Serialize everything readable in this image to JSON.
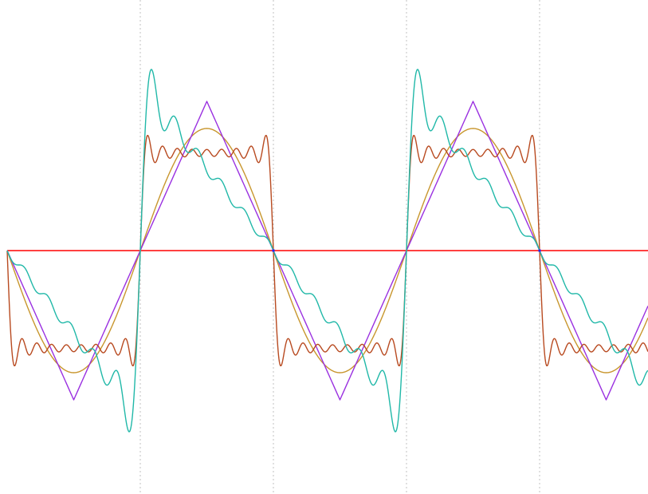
{
  "chart_data": {
    "type": "line",
    "title": "",
    "xlabel": "",
    "ylabel": "",
    "xlim": [
      -1.0,
      2.8
    ],
    "ylim": [
      -1.82,
      1.75
    ],
    "xgrid": [
      0,
      1,
      2,
      3
    ],
    "grid": "vertical-dotted",
    "legend": "none",
    "axis_color": "#ff0000",
    "tick_dot_color": "#2020ff",
    "series": [
      {
        "id": "sine",
        "kind": "sine",
        "period": 2,
        "amplitude": 0.9,
        "color": "#c8962d"
      },
      {
        "id": "triangle",
        "kind": "triangle",
        "period": 2,
        "amplitude": 1.1,
        "color": "#9a30e0"
      },
      {
        "id": "square",
        "kind": "square-fourier",
        "period": 2,
        "amplitude": 0.72,
        "terms": 9,
        "color": "#b84a20"
      },
      {
        "id": "sawtooth",
        "kind": "sawtooth-fourier",
        "period": 2,
        "amplitude": 1.22,
        "terms": 11,
        "color": "#20b8a8"
      }
    ]
  }
}
